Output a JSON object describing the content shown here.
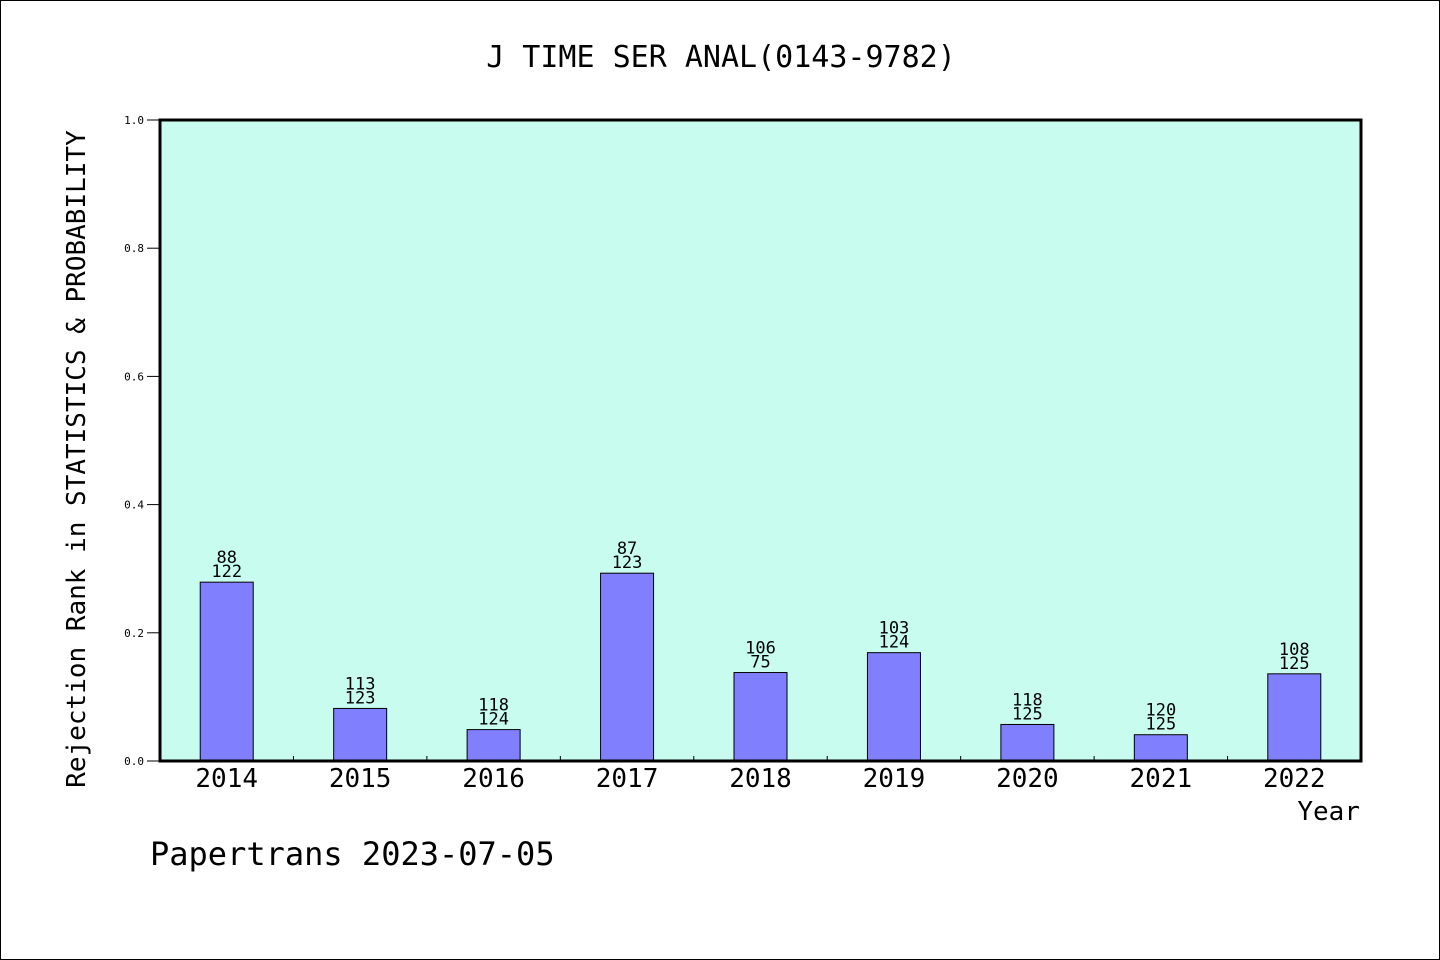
{
  "colors": {
    "plot_background": "#c8fcee",
    "bar_fill": "#8080ff",
    "bar_stroke": "#000000",
    "axis": "#000000"
  },
  "footer": "Papertrans 2023-07-05",
  "chart_data": {
    "type": "bar",
    "title": "J TIME SER ANAL(0143-9782)",
    "xlabel": "Year",
    "ylabel": "Rejection Rank in STATISTICS & PROBABILITY",
    "categories": [
      "2014",
      "2015",
      "2016",
      "2017",
      "2018",
      "2019",
      "2020",
      "2021",
      "2022"
    ],
    "values": [
      0.279,
      0.082,
      0.049,
      0.293,
      0.138,
      0.169,
      0.057,
      0.041,
      0.136
    ],
    "labels_top": [
      "88",
      "113",
      "118",
      "87",
      "106",
      "103",
      "118",
      "120",
      "108"
    ],
    "labels_bottom": [
      "122",
      "123",
      "124",
      "123",
      "75",
      "124",
      "125",
      "125",
      "125"
    ],
    "ylim": [
      0,
      1.0
    ],
    "yticks": [
      "0.0",
      "0.2",
      "0.4",
      "0.6",
      "0.8",
      "1.0"
    ],
    "grid": false,
    "legend": false
  }
}
